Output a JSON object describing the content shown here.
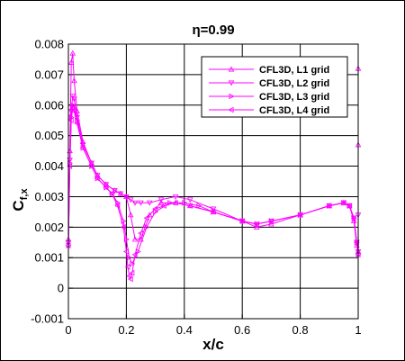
{
  "chart_data": {
    "type": "line",
    "title": "η=0.99",
    "xlabel": "x/c",
    "ylabel_main": "C",
    "ylabel_sub": "f,x",
    "xlim": [
      0,
      1
    ],
    "ylim": [
      -0.001,
      0.008
    ],
    "x_ticks": [
      "0",
      "0.2",
      "0.4",
      "0.6",
      "0.8",
      "1"
    ],
    "y_ticks": [
      "-0.001",
      "0",
      "0.001",
      "0.002",
      "0.003",
      "0.004",
      "0.005",
      "0.006",
      "0.007",
      "0.008"
    ],
    "grid": true,
    "legend_position": "top-right",
    "series": [
      {
        "name": "CFL3D, L1 grid",
        "marker": "triangle-up",
        "color": "#ff00ff",
        "x": [
          0.0,
          0.005,
          0.01,
          0.015,
          0.02,
          0.03,
          0.05,
          0.08,
          0.1,
          0.13,
          0.16,
          0.18,
          0.2,
          0.215,
          0.23,
          0.25,
          0.28,
          0.32,
          0.37,
          0.42,
          0.5,
          0.6,
          0.65,
          0.7,
          0.8,
          0.9,
          0.95,
          0.97,
          0.985,
          0.995,
          1.0,
          1.0,
          1.0
        ],
        "y": [
          0.0016,
          0.0045,
          0.0074,
          0.0077,
          0.0068,
          0.0058,
          0.0048,
          0.0041,
          0.0037,
          0.0034,
          0.0032,
          0.0031,
          0.003,
          0.0024,
          0.0016,
          0.0016,
          0.0024,
          0.0028,
          0.0028,
          0.0027,
          0.0025,
          0.0022,
          0.002,
          0.0021,
          0.0024,
          0.0027,
          0.0028,
          0.0027,
          0.0022,
          0.0014,
          0.0012,
          0.0047,
          0.0072
        ]
      },
      {
        "name": "CFL3D, L2 grid",
        "marker": "triangle-down",
        "color": "#ff00ff",
        "x": [
          0.0,
          0.005,
          0.01,
          0.015,
          0.02,
          0.03,
          0.05,
          0.08,
          0.1,
          0.13,
          0.16,
          0.18,
          0.2,
          0.215,
          0.23,
          0.25,
          0.28,
          0.32,
          0.37,
          0.42,
          0.5,
          0.6,
          0.65,
          0.7,
          0.8,
          0.9,
          0.95,
          0.97,
          0.985,
          0.995,
          1.0,
          1.0
        ],
        "y": [
          0.0015,
          0.0042,
          0.0058,
          0.0063,
          0.0062,
          0.0056,
          0.0047,
          0.0041,
          0.0037,
          0.0034,
          0.0032,
          0.0031,
          0.003,
          0.0029,
          0.0028,
          0.0028,
          0.0028,
          0.0029,
          0.003,
          0.0029,
          0.0026,
          0.0022,
          0.0021,
          0.0022,
          0.0024,
          0.0027,
          0.0028,
          0.0027,
          0.0023,
          0.0015,
          0.0012,
          0.0024
        ]
      },
      {
        "name": "CFL3D, L3 grid",
        "marker": "triangle-right",
        "color": "#ff00ff",
        "x": [
          0.0,
          0.005,
          0.01,
          0.015,
          0.02,
          0.03,
          0.05,
          0.08,
          0.1,
          0.13,
          0.15,
          0.17,
          0.19,
          0.2,
          0.21,
          0.22,
          0.24,
          0.27,
          0.3,
          0.35,
          0.4,
          0.45,
          0.5,
          0.6,
          0.65,
          0.7,
          0.8,
          0.9,
          0.95,
          0.97,
          0.985,
          0.995,
          1.0
        ],
        "y": [
          0.0014,
          0.0041,
          0.0056,
          0.006,
          0.0059,
          0.0055,
          0.0046,
          0.004,
          0.0036,
          0.0033,
          0.0031,
          0.0028,
          0.0022,
          0.0016,
          0.001,
          0.0008,
          0.0012,
          0.002,
          0.0025,
          0.0028,
          0.0028,
          0.0027,
          0.0025,
          0.0022,
          0.0021,
          0.0022,
          0.0024,
          0.0027,
          0.0028,
          0.0027,
          0.0023,
          0.0015,
          0.0011
        ]
      },
      {
        "name": "CFL3D, L4 grid",
        "marker": "triangle-left",
        "color": "#ff00ff",
        "x": [
          0.0,
          0.005,
          0.01,
          0.015,
          0.02,
          0.03,
          0.05,
          0.08,
          0.1,
          0.13,
          0.15,
          0.17,
          0.19,
          0.2,
          0.205,
          0.21,
          0.215,
          0.22,
          0.23,
          0.25,
          0.27,
          0.3,
          0.33,
          0.37,
          0.42,
          0.5,
          0.6,
          0.65,
          0.7,
          0.8,
          0.9,
          0.95,
          0.97,
          0.985,
          0.995,
          1.0
        ],
        "y": [
          0.0014,
          0.004,
          0.0055,
          0.0059,
          0.0058,
          0.0054,
          0.0046,
          0.004,
          0.0036,
          0.0033,
          0.0031,
          0.0027,
          0.002,
          0.0012,
          0.0007,
          0.0004,
          0.0003,
          0.0005,
          0.0011,
          0.0018,
          0.0023,
          0.0026,
          0.0027,
          0.0028,
          0.0027,
          0.0025,
          0.0022,
          0.0021,
          0.0022,
          0.0024,
          0.0027,
          0.0028,
          0.0027,
          0.0023,
          0.0015,
          0.0011
        ]
      }
    ]
  }
}
